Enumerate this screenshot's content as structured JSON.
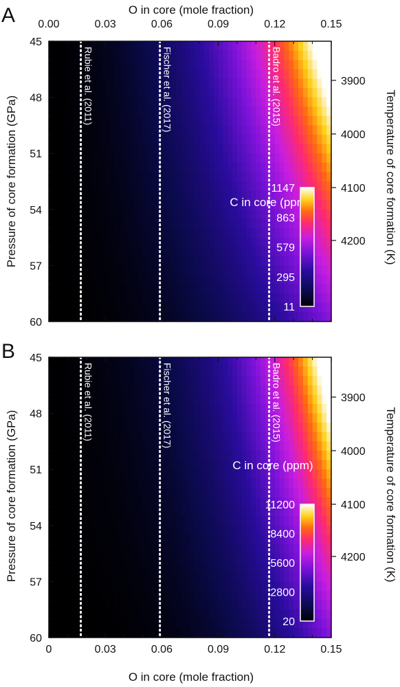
{
  "chart_data": [
    {
      "panel_label": "A",
      "type": "heatmap",
      "x_top_label": "O in core (mole fraction)",
      "x_ticks": [
        "0.00",
        "0.03",
        "0.06",
        "0.09",
        "0.12",
        "0.15"
      ],
      "xlim": [
        0,
        0.15
      ],
      "ylabel": "Pressure of core formation (GPa)",
      "y_ticks": [
        "45",
        "48",
        "51",
        "54",
        "57",
        "60"
      ],
      "ylim": [
        60,
        45
      ],
      "y2label": "Temperature of core formation (K)",
      "y2_ticks": [
        "3900",
        "4000",
        "4100",
        "4200"
      ],
      "colorbar": {
        "title": "C in core (ppm)",
        "ticks": [
          "1147",
          "863",
          "579",
          "295",
          "11"
        ],
        "range": [
          11,
          1147
        ]
      },
      "reference_lines": [
        {
          "label": "Rubie et al. (2011)",
          "x": 0.017
        },
        {
          "label": "Fischer et al. (2017)",
          "x": 0.059
        },
        {
          "label": "Badro et al. (2015)",
          "x": 0.117
        }
      ]
    },
    {
      "panel_label": "B",
      "type": "heatmap",
      "xlabel": "O in core (mole fraction)",
      "x_ticks": [
        "0",
        "0.03",
        "0.06",
        "0.09",
        "0.12",
        "0.15"
      ],
      "xlim": [
        0,
        0.15
      ],
      "ylabel": "Pressure of core formation (GPa)",
      "y_ticks": [
        "45",
        "48",
        "51",
        "54",
        "57",
        "60"
      ],
      "ylim": [
        60,
        45
      ],
      "y2label": "Temperature of core formation (K)",
      "y2_ticks": [
        "3900",
        "4000",
        "4100",
        "4200"
      ],
      "colorbar": {
        "title": "C in core (ppm)",
        "ticks": [
          "11200",
          "8400",
          "5600",
          "2800",
          "20"
        ],
        "range": [
          20,
          11200
        ]
      },
      "reference_lines": [
        {
          "label": "Rubie et al. (2011)",
          "x": 0.017
        },
        {
          "label": "Fischer et al. (2017)",
          "x": 0.059
        },
        {
          "label": "Badro et al. (2015)",
          "x": 0.117
        }
      ]
    }
  ],
  "colors": {
    "colormap": [
      "#000000",
      "#0a0a4a",
      "#2a0c9e",
      "#7a12d8",
      "#c81ee0",
      "#ff2a6e",
      "#ff6a10",
      "#ffd21a",
      "#ffffff"
    ],
    "reference_line": "#ffffff",
    "axis": "#111111"
  }
}
